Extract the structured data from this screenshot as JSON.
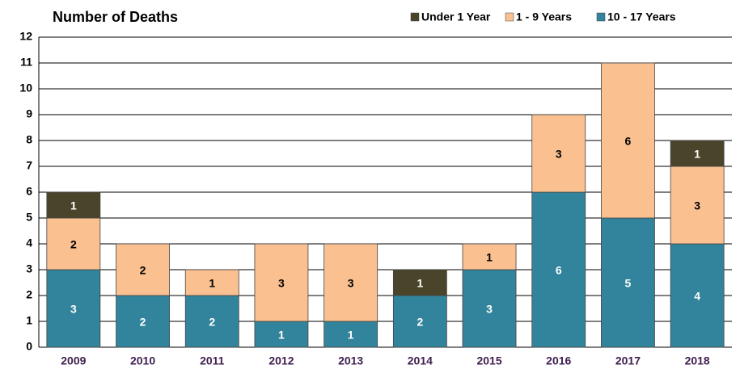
{
  "chart_data": {
    "type": "stacked_bar",
    "title": "Number of Deaths",
    "categories": [
      "2009",
      "2010",
      "2011",
      "2012",
      "2013",
      "2014",
      "2015",
      "2016",
      "2017",
      "2018"
    ],
    "series": [
      {
        "name": "10 - 17 Years",
        "color": "#31849b",
        "values": [
          3,
          2,
          2,
          1,
          1,
          2,
          3,
          6,
          5,
          4
        ]
      },
      {
        "name": "1 - 9 Years",
        "color": "#fac090",
        "values": [
          2,
          2,
          1,
          3,
          3,
          0,
          1,
          3,
          6,
          3
        ]
      },
      {
        "name": "Under 1 Year",
        "color": "#4a452a",
        "values": [
          1,
          0,
          0,
          0,
          0,
          1,
          0,
          0,
          0,
          1
        ]
      }
    ],
    "legend_order": [
      2,
      1,
      0
    ],
    "ylim": [
      0,
      12
    ],
    "yticks": [
      0,
      1,
      2,
      3,
      4,
      5,
      6,
      7,
      8,
      9,
      10,
      11,
      12
    ],
    "grid": true,
    "legend": "top-right"
  }
}
